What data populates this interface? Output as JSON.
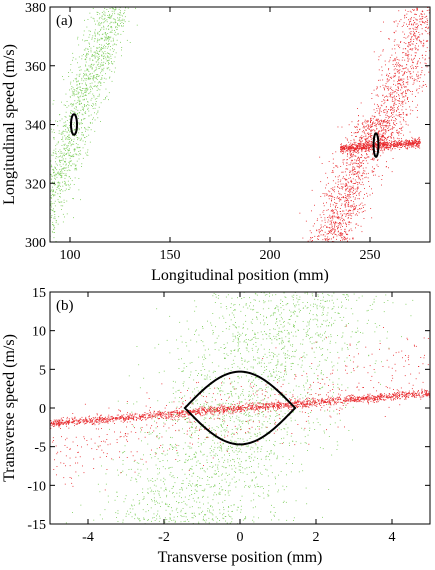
{
  "chart_data": [
    {
      "panel_label": "(a)",
      "type": "scatter",
      "xlabel": "Longitudinal position (mm)",
      "ylabel": "Longitudinal speed (m/s)",
      "xlim": [
        90,
        280
      ],
      "ylim": [
        300,
        380
      ],
      "xticks": [
        100,
        150,
        200,
        250
      ],
      "yticks": [
        300,
        320,
        340,
        360,
        380
      ],
      "grid": false,
      "series": [
        {
          "color": "#7ccd5a",
          "clouds": [
            {
              "x_center": 102,
              "y_center": 340,
              "slope_x_per_y": 0.5,
              "x_spread": 5,
              "y_range": [
                300,
                380
              ],
              "count": 1500
            }
          ]
        },
        {
          "color": "#e8282c",
          "clouds": [
            {
              "x_center": 240,
              "y_center": 320,
              "slope_x_per_y": 0.5,
              "x_spread": 6,
              "y_range": [
                300,
                342
              ],
              "count": 1000
            },
            {
              "x_center": 266,
              "y_center": 357,
              "slope_x_per_y": 0.5,
              "x_spread": 6,
              "y_range": [
                335,
                380
              ],
              "count": 900
            },
            {
              "x_center": 255,
              "y_center": 333,
              "slope_y_per_x": 0.05,
              "x_range": [
                235,
                275
              ],
              "y_spread": 0.8,
              "count": 800
            }
          ]
        }
      ],
      "acceptance_curves": [
        {
          "x_center": 102,
          "y_center": 340,
          "x_halfwidth": 1.5,
          "y_halfheight": 3.5,
          "color": "#000000"
        },
        {
          "x_center": 253,
          "y_center": 333,
          "x_halfwidth": 1.2,
          "y_halfheight": 4,
          "color": "#000000"
        }
      ]
    },
    {
      "panel_label": "(b)",
      "type": "scatter",
      "xlabel": "Transverse position (mm)",
      "ylabel": "Transverse speed (m/s)",
      "xlim": [
        -5,
        5
      ],
      "ylim": [
        -15,
        15
      ],
      "xticks": [
        -4,
        -2,
        0,
        2,
        4
      ],
      "yticks": [
        -15,
        -10,
        -5,
        0,
        5,
        10,
        15
      ],
      "grid": false,
      "series": [
        {
          "color": "#7ccd5a",
          "clouds": [
            {
              "x_center": 0,
              "y_center": 0,
              "slope_x_per_y": 0.1,
              "x_spread": 1.2,
              "y_range": [
                -15,
                15
              ],
              "count": 2200
            }
          ]
        },
        {
          "color": "#e8282c",
          "clouds": [
            {
              "x_center": 0,
              "y_center": 0,
              "slope_y_per_x": 0.4,
              "x_range": [
                -5,
                5
              ],
              "y_spread": 0.25,
              "count": 1800
            },
            {
              "x_center": 0,
              "y_center": 0,
              "slope_y_per_x": 1.2,
              "x_range": [
                -5,
                5
              ],
              "y_spread": 2.5,
              "count": 500
            }
          ]
        }
      ],
      "acceptance_curves": [
        {
          "lens": true,
          "x_range": [
            -1.45,
            1.45
          ],
          "y_max": 4.7,
          "color": "#000000"
        }
      ]
    }
  ]
}
